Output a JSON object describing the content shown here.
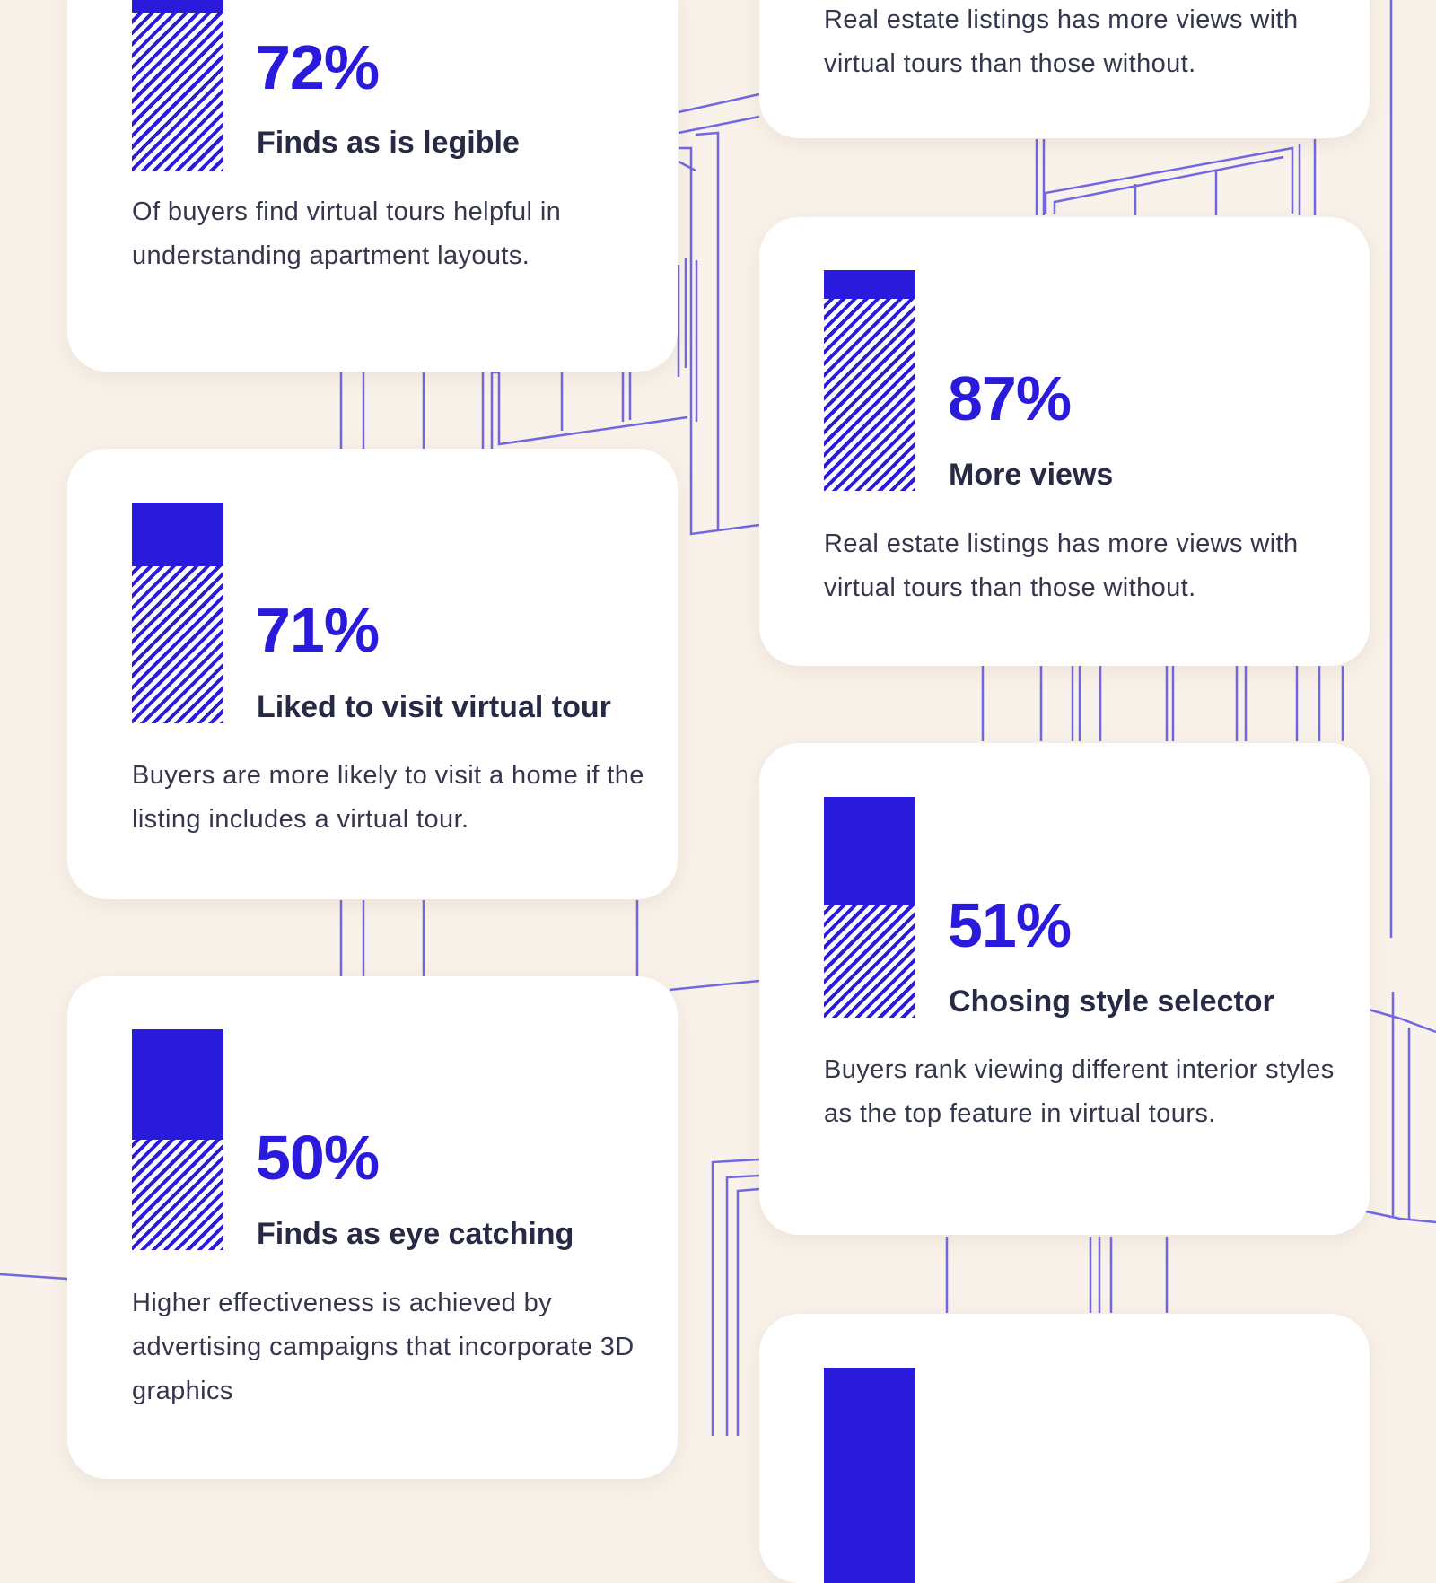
{
  "colors": {
    "accent": "#2a1bdc",
    "background": "#f9f2ea",
    "card": "#ffffff",
    "text": "#272a45",
    "line": "#5b4fe0"
  },
  "stats": [
    {
      "value": 72,
      "percent": "72%",
      "title": "Finds as is legible",
      "description": "Of buyers find virtual tours helpful in understanding apartment layouts."
    },
    {
      "value": 71,
      "percent": "71%",
      "title": "Liked to visit virtual tour",
      "description": "Buyers are more likely to visit a home if the listing includes a virtual tour."
    },
    {
      "value": 50,
      "percent": "50%",
      "title": "Finds as eye catching",
      "description": "Higher effectiveness is achieved by advertising campaigns that incorporate 3D graphics"
    },
    {
      "description": "Real estate listings has more views with virtual tours than those without."
    },
    {
      "value": 87,
      "percent": "87%",
      "title": "More views",
      "description": "Real estate listings has more views with virtual tours than those without."
    },
    {
      "value": 51,
      "percent": "51%",
      "title": "Chosing style selector",
      "description": "Buyers rank viewing different interior styles as the top feature in virtual tours."
    },
    {}
  ]
}
